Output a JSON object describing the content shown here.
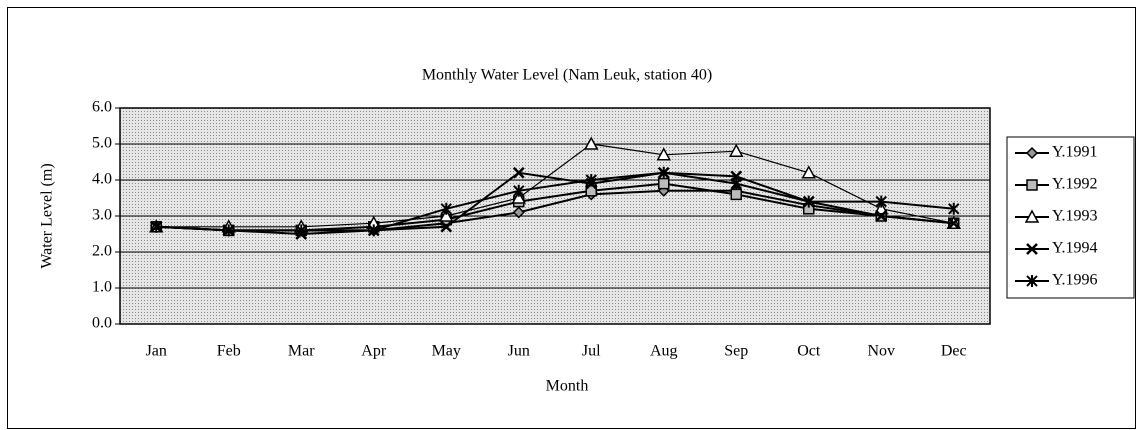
{
  "chart_data": {
    "type": "line",
    "title": "Monthly Water Level (Nam Leuk, station 40)",
    "x_label": "Month",
    "y_label": "Water Level (m)",
    "categories": [
      "Jan",
      "Feb",
      "Mar",
      "Apr",
      "May",
      "Jun",
      "Jul",
      "Aug",
      "Sep",
      "Oct",
      "Nov",
      "Dec"
    ],
    "series": [
      {
        "name": "Y.1991",
        "color": "#000000",
        "marker": "diamond",
        "values": [
          2.7,
          2.6,
          2.6,
          2.6,
          2.8,
          3.1,
          3.6,
          3.7,
          3.7,
          3.3,
          3.0,
          2.8
        ]
      },
      {
        "name": "Y.1992",
        "color": "#000000",
        "marker": "square",
        "values": [
          2.7,
          2.6,
          2.6,
          2.7,
          2.9,
          3.4,
          3.7,
          3.9,
          3.6,
          3.2,
          3.0,
          2.8
        ]
      },
      {
        "name": "Y.1993",
        "color": "#000000",
        "marker": "triangle",
        "values": [
          2.7,
          2.7,
          2.7,
          2.8,
          3.0,
          3.5,
          5.0,
          4.7,
          4.8,
          4.2,
          3.2,
          2.8
        ]
      },
      {
        "name": "Y.1994",
        "color": "#000000",
        "marker": "x",
        "values": [
          2.7,
          2.6,
          2.5,
          2.6,
          2.7,
          4.2,
          3.9,
          4.2,
          4.1,
          3.4,
          3.0,
          2.8
        ]
      },
      {
        "name": "Y.1996",
        "color": "#000000",
        "marker": "star",
        "values": [
          2.7,
          2.6,
          2.6,
          2.6,
          3.2,
          3.7,
          4.0,
          4.2,
          3.9,
          3.4,
          3.4,
          3.2
        ]
      }
    ],
    "ylim": [
      0,
      6
    ],
    "yticks": [
      {
        "value": 0,
        "label": "0.0"
      },
      {
        "value": 1,
        "label": "1.0"
      },
      {
        "value": 2,
        "label": "2.0"
      },
      {
        "value": 3,
        "label": "3.0"
      },
      {
        "value": 4,
        "label": "4.0"
      },
      {
        "value": 5,
        "label": "5.0"
      },
      {
        "value": 6,
        "label": "6.0"
      }
    ],
    "grid": true,
    "legend": "right"
  }
}
